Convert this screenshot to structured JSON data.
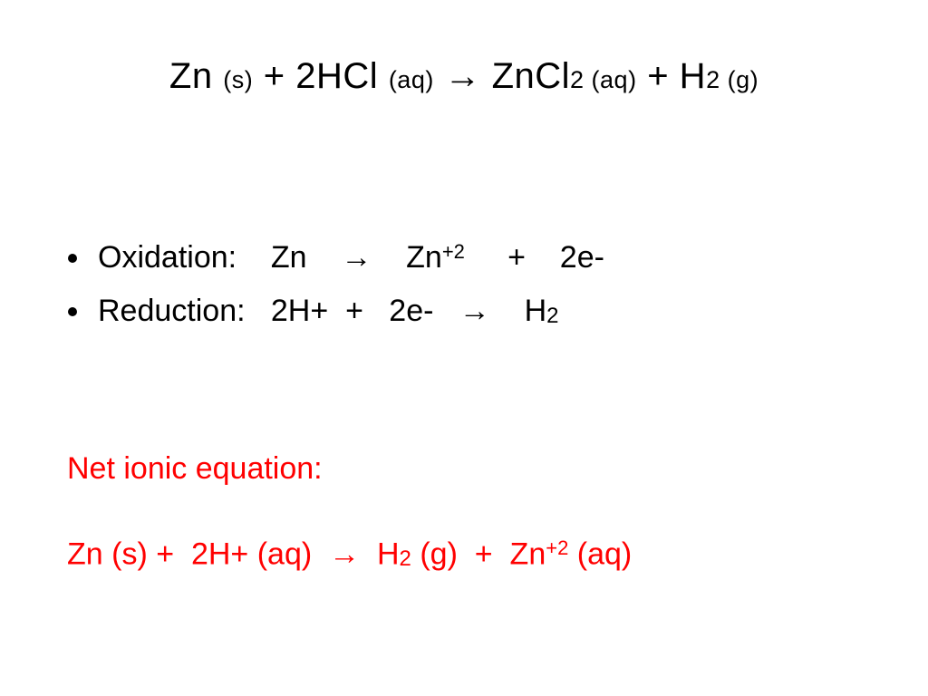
{
  "colors": {
    "background": "#ffffff",
    "text": "#000000",
    "highlight": "#ff0000"
  },
  "typography": {
    "title_fontsize_pt": 40,
    "title_state_fontsize_pt": 27,
    "body_fontsize_pt": 34,
    "superscript_fontsize_pt": 22,
    "subscript_fontsize_pt": 24,
    "font_family": "Arial"
  },
  "title": {
    "r1": "Zn ",
    "r1_state": "(s)",
    "plus1": " + ",
    "r2": "2HCl ",
    "r2_state": "(aq)",
    "arrow": "  → ",
    "p1": "ZnCl",
    "p1_sub": "2",
    "p1_state": " (aq)",
    "plus2": " + ",
    "p2": "H",
    "p2_sub": "2",
    "p2_state": "  (g)"
  },
  "half_reactions": {
    "oxidation": {
      "label": "Oxidation:    ",
      "left": "Zn    ",
      "arrow": "→    ",
      "prod": "Zn",
      "prod_sup": "+2",
      "plus": "     +    2e-"
    },
    "reduction": {
      "label": "Reduction:   ",
      "left": "2H+  +   2e-   ",
      "arrow": "→    ",
      "prod": "H",
      "prod_sub": "2"
    }
  },
  "net": {
    "label": "Net ionic equation:",
    "r1": "Zn (s) +  2H+ (aq)  ",
    "arrow": "→",
    "mid": "  H",
    "h_sub": "2",
    "h_state": " (g)  +  Zn",
    "zn_sup": "+2",
    "zn_state": " (aq)"
  }
}
